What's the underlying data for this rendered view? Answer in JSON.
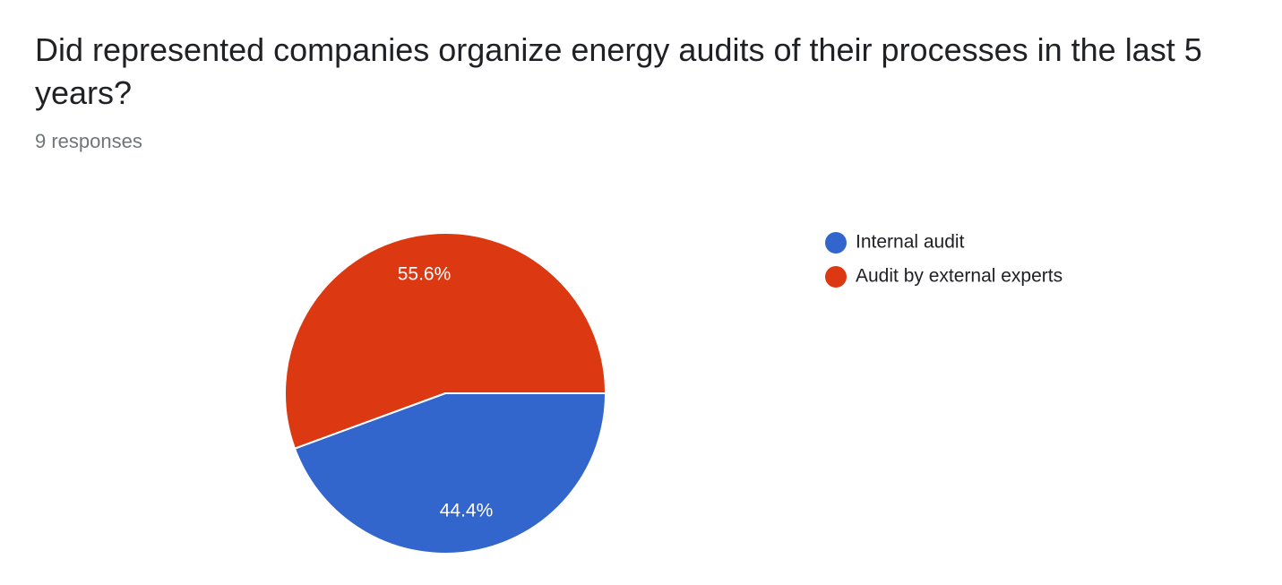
{
  "chart_data": {
    "type": "pie",
    "title": "Did represented companies organize energy audits of their processes in the last 5 years?",
    "subtitle": "9 responses",
    "categories": [
      "Internal audit",
      "Audit by external experts"
    ],
    "values": [
      44.4,
      55.6
    ],
    "value_labels": [
      "44.4%",
      "55.6%"
    ],
    "colors": [
      "#3366cc",
      "#dc3912"
    ],
    "legend": "right"
  }
}
